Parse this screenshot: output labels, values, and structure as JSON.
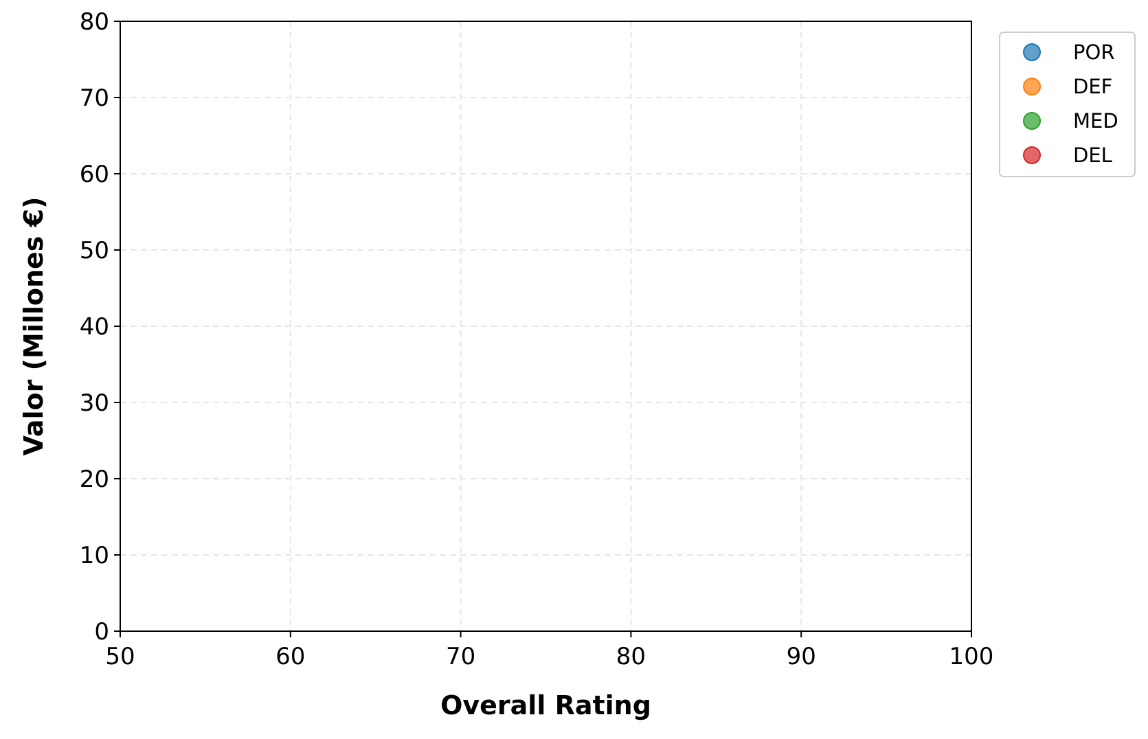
{
  "chart_data": {
    "type": "scatter",
    "title": "",
    "xlabel": "Overall Rating",
    "ylabel": "Valor (Millones €)",
    "xlim": [
      50,
      100
    ],
    "ylim": [
      0,
      80
    ],
    "xticks": [
      50,
      60,
      70,
      80,
      90,
      100
    ],
    "yticks": [
      0,
      10,
      20,
      30,
      40,
      50,
      60,
      70,
      80
    ],
    "grid": true,
    "legend_position": "outside-top-right",
    "series": [
      {
        "name": "POR",
        "color": "#1f77b4",
        "points": []
      },
      {
        "name": "DEF",
        "color": "#ff7f0e",
        "points": []
      },
      {
        "name": "MED",
        "color": "#2ca02c",
        "points": []
      },
      {
        "name": "DEL",
        "color": "#d62728",
        "points": []
      }
    ]
  }
}
